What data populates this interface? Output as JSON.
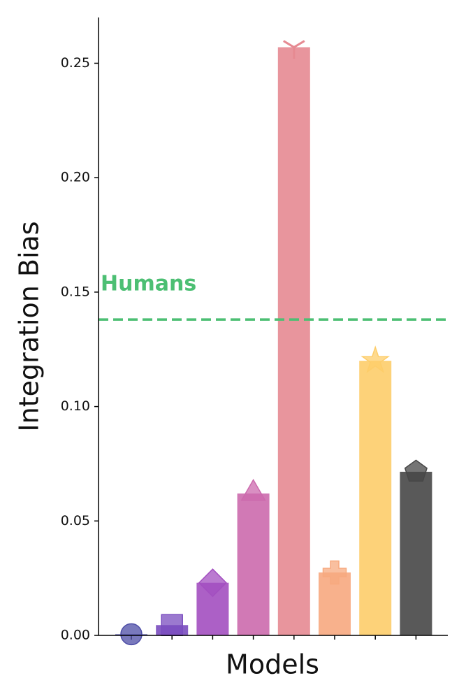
{
  "chart_data": {
    "type": "bar",
    "categories": [
      null,
      null,
      null,
      null,
      null,
      null,
      null,
      null
    ],
    "values": [
      0.0005,
      0.0045,
      0.023,
      0.062,
      0.257,
      0.0275,
      0.12,
      0.0715
    ],
    "colors": [
      "#4c4ca6",
      "#7a4cbf",
      "#a34fc0",
      "#cc6aad",
      "#e68a92",
      "#f7a97f",
      "#fdcd6a",
      "#474747"
    ],
    "markers": [
      "circle",
      "square",
      "diamond",
      "triangle",
      "tri_down",
      "plus",
      "star",
      "pentagon"
    ],
    "xlabel": "Models",
    "ylabel": "Integration Bias",
    "ylim": [
      0,
      0.27
    ],
    "yticks": [
      {
        "value": 0,
        "label": "0.00"
      },
      0.05,
      {
        "value": 0.1,
        "label": "0.10"
      },
      0.15,
      {
        "value": 0.2,
        "label": "0.20"
      },
      0.25
    ],
    "reference_line": {
      "label": "Humans",
      "value": 0.138,
      "color": "#4cbf73"
    }
  }
}
